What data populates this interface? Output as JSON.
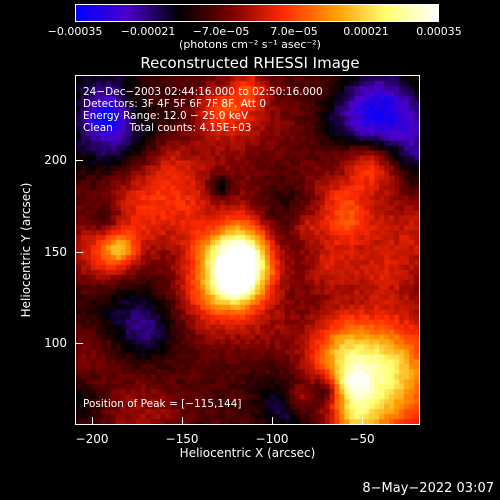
{
  "colorbar": {
    "ticks": [
      "−0.00035",
      "−0.00021",
      "−7.0e−05",
      "7.0e−05",
      "0.00021",
      "0.00035"
    ],
    "units": "(photons cm⁻² s⁻¹ asec⁻²)",
    "colors": [
      "#0000ff",
      "#4b00c8",
      "#000000",
      "#7a0000",
      "#ff2a00",
      "#ff9a00",
      "#ffff70",
      "#ffffff"
    ]
  },
  "title": "Reconstructed RHESSI Image",
  "info": {
    "line1": "24−Dec−2003 02:44:16.000 to 02:50:16.000",
    "line2": "Detectors: 3F 4F 5F 6F 7F 8F, Att 0",
    "line3": "Energy Range: 12.0 − 25.0 keV",
    "line4": "Clean     Total counts: 4.15E+03",
    "peak": "Position of Peak = [−115,144]"
  },
  "axes": {
    "xlabel": "Heliocentric X (arcsec)",
    "ylabel": "Heliocentric Y (arcsec)",
    "xticks": [
      "−200",
      "−150",
      "−100",
      "−50"
    ],
    "yticks": [
      "200",
      "150",
      "100"
    ]
  },
  "footer": {
    "timestamp": "8−May−2022 03:07"
  }
}
